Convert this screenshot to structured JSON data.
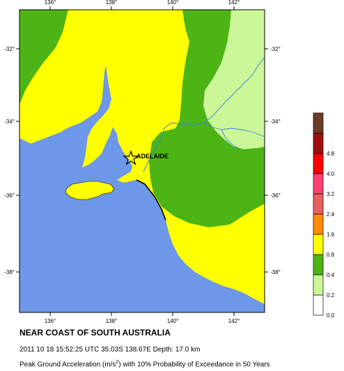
{
  "map": {
    "title": "NEAR COAST OF SOUTH AUSTRALIA",
    "event_info": "2011 10 18 15:52:25 UTC 35.03S 138.67E Depth: 17.0 km",
    "caption_prefix": "Peak Ground Acceleration (m/s",
    "caption_sup": "2",
    "caption_suffix": ") with 10% Probability of Exceedance in 50 Years",
    "city_label": "ADELAIDE",
    "epicenter": {
      "lat": -35.03,
      "lon": 138.67
    },
    "lon_ticks": [
      "136°",
      "138°",
      "140°",
      "142°"
    ],
    "lat_ticks": [
      "-32°",
      "-34°",
      "-36°",
      "-38°"
    ],
    "extent": {
      "lon_min": 135,
      "lon_max": 143,
      "lat_min": -39,
      "lat_max": -31
    }
  },
  "legend": {
    "labels": [
      "0.0",
      "0.2",
      "0.4",
      "0.8",
      "1.6",
      "2.4",
      "3.2",
      "4.0",
      "4.8"
    ],
    "colors": [
      "#ffffff",
      "#ccf799",
      "#4cb414",
      "#ffff00",
      "#ff8c00",
      "#e86060",
      "#ff4070",
      "#ff0000",
      "#a01010",
      "#6e3a28"
    ]
  },
  "colors": {
    "ocean": "#6d97e8",
    "zone_low": "#ccf799",
    "zone_mid": "#4cb414",
    "zone_high": "#ffff00",
    "river": "#3b7ee0"
  }
}
